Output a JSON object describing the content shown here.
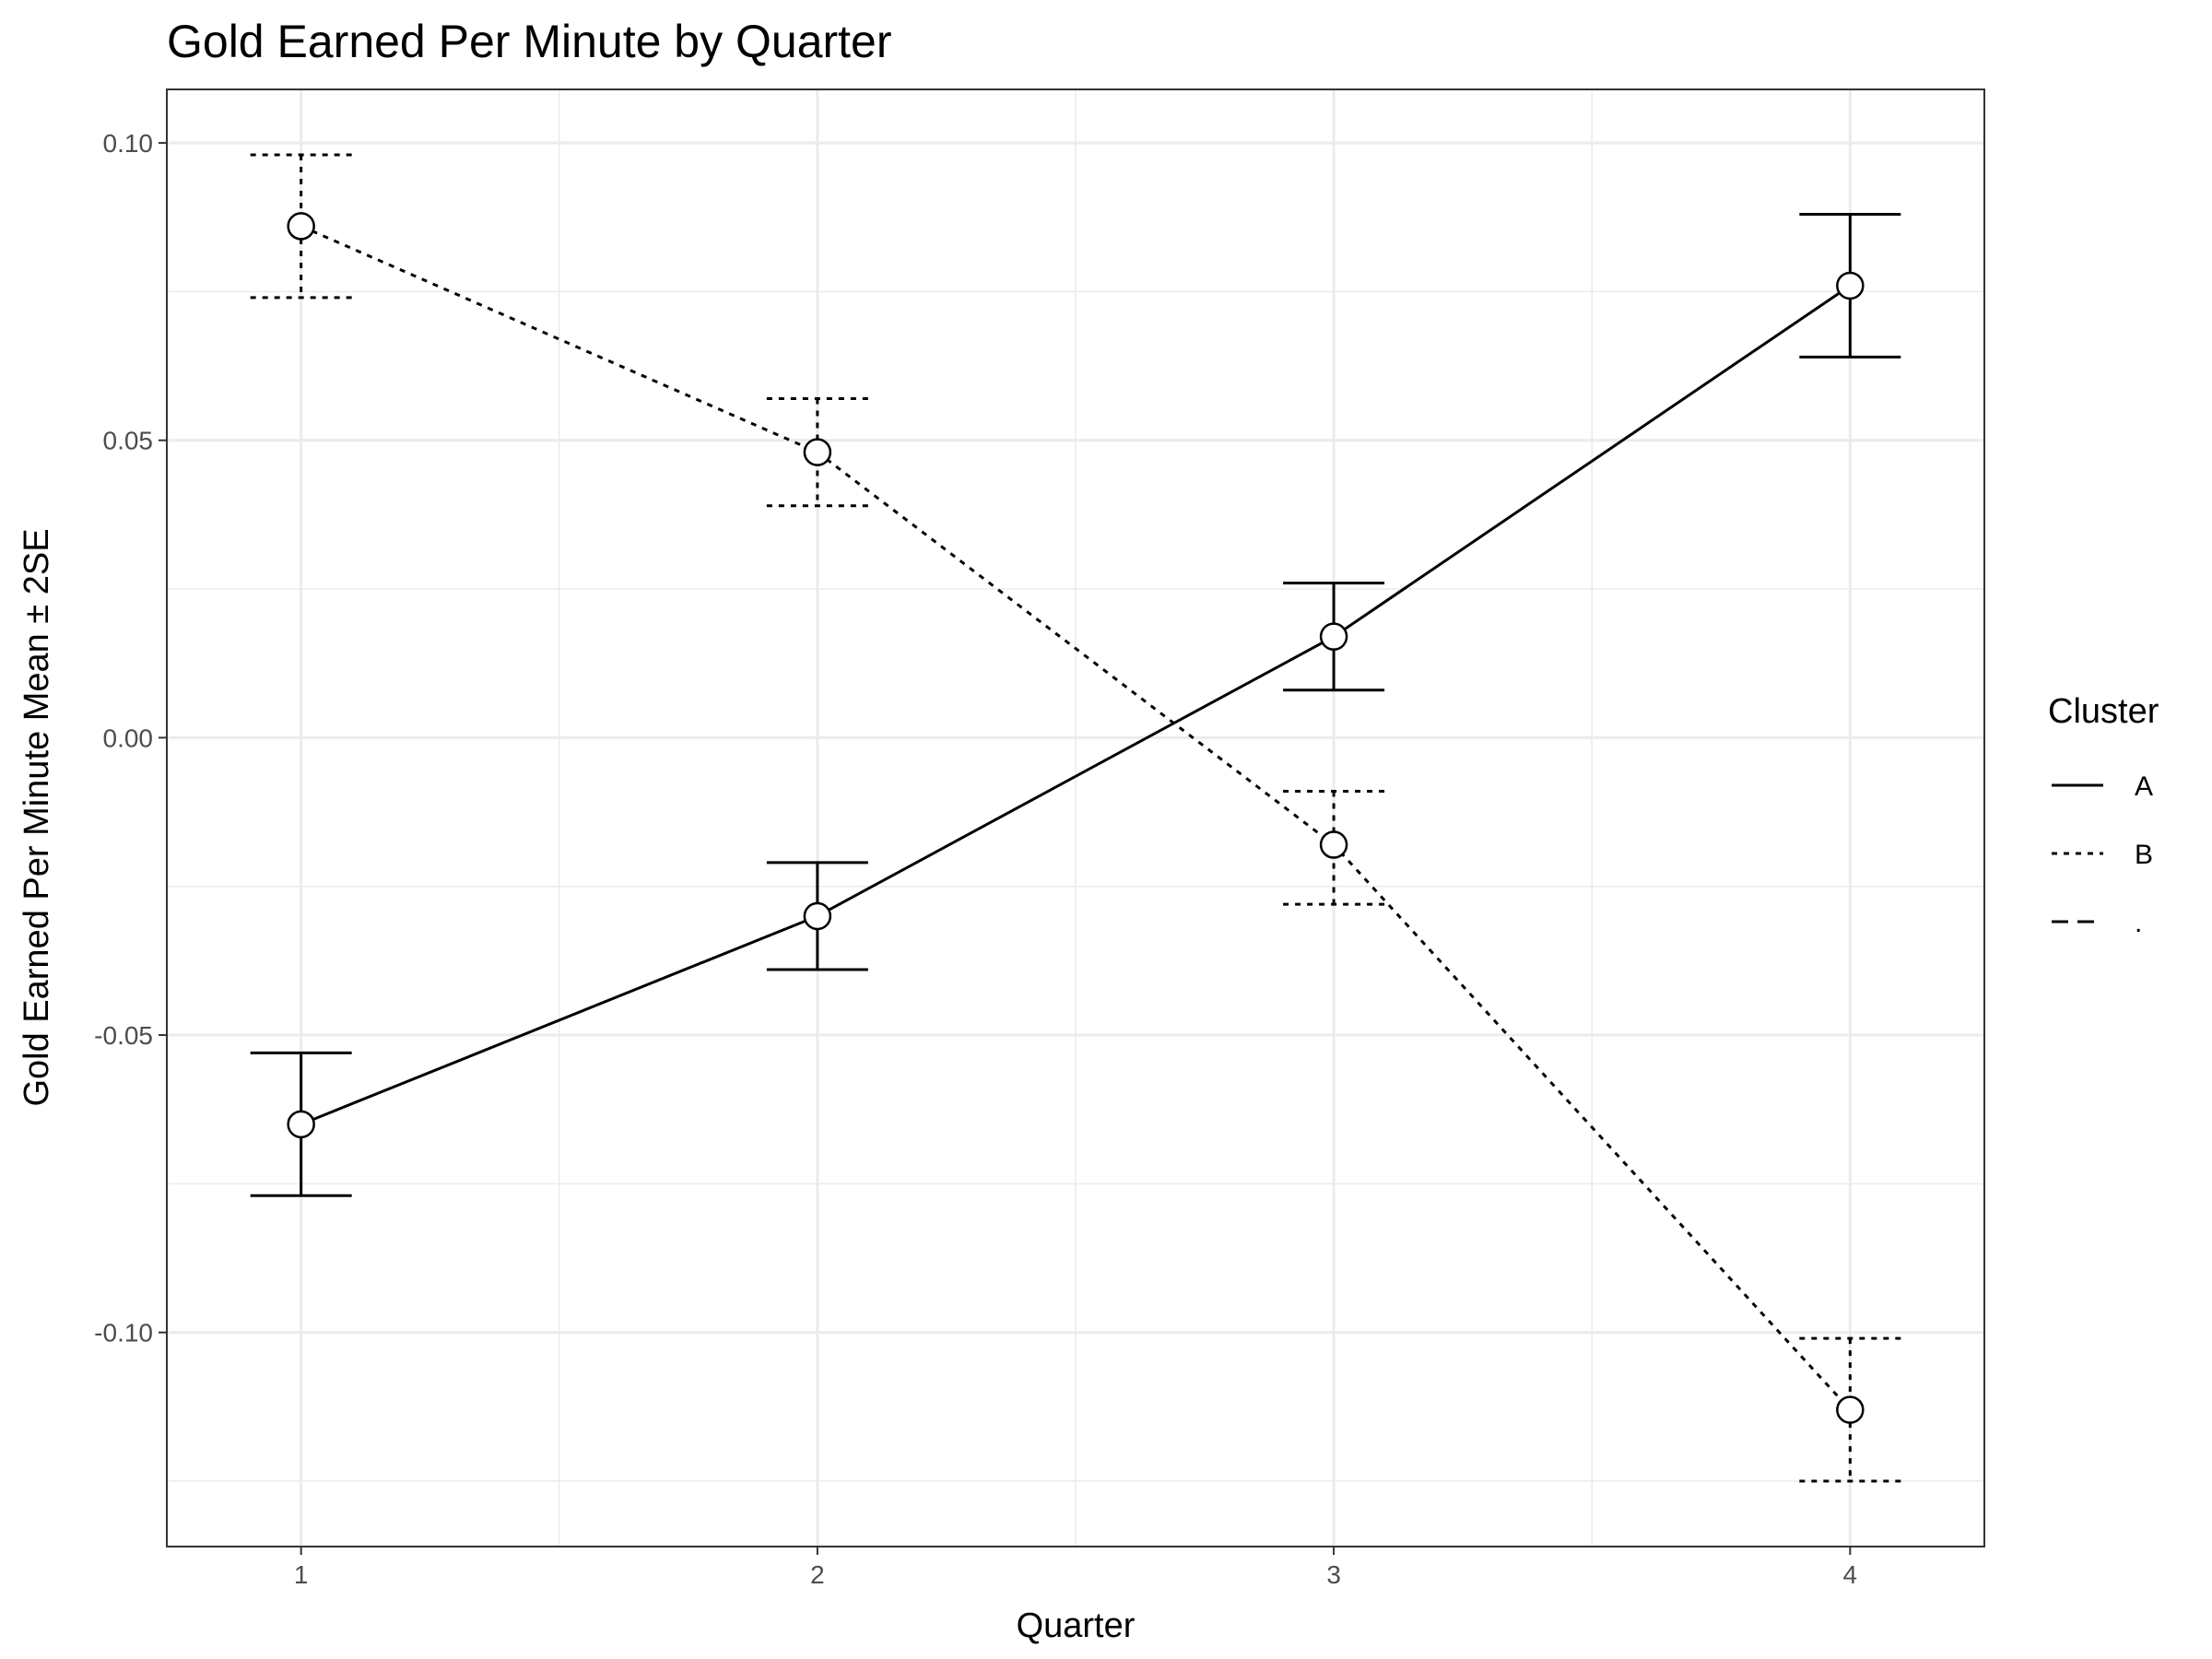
{
  "chart_data": {
    "type": "line",
    "title": "Gold Earned Per Minute by Quarter",
    "xlabel": "Quarter",
    "ylabel": "Gold Earned Per Minute Mean ± 2SE",
    "x": [
      1,
      2,
      3,
      4
    ],
    "x_tick_labels": [
      "1",
      "2",
      "3",
      "4"
    ],
    "xlim": [
      0.74,
      4.26
    ],
    "ylim": [
      -0.136,
      0.109
    ],
    "y_ticks": [
      0.1,
      0.05,
      0.0,
      -0.05,
      -0.1
    ],
    "y_tick_labels": [
      "0.10",
      "0.05",
      "0.00",
      "-0.05",
      "-0.10"
    ],
    "grid": true,
    "legend_position": "right",
    "legend_title": "Cluster",
    "series": [
      {
        "name": "A",
        "linetype": "solid",
        "values": [
          -0.065,
          -0.03,
          0.017,
          0.076
        ],
        "lower": [
          -0.077,
          -0.039,
          0.008,
          0.064
        ],
        "upper": [
          -0.053,
          -0.021,
          0.026,
          0.088
        ]
      },
      {
        "name": "B",
        "linetype": "dotted",
        "values": [
          0.086,
          0.048,
          -0.018,
          -0.113
        ],
        "lower": [
          0.074,
          0.039,
          -0.028,
          -0.125
        ],
        "upper": [
          0.098,
          0.057,
          -0.009,
          -0.101
        ]
      }
    ],
    "legend_entries": [
      {
        "label": "A",
        "linetype": "solid"
      },
      {
        "label": "B",
        "linetype": "dotted"
      },
      {
        "label": ".",
        "linetype": "dashed"
      }
    ]
  },
  "colors": {
    "line": "#000000",
    "grid": "#ebebeb",
    "panel_border": "#333333",
    "tick_text": "#4d4d4d",
    "point_fill": "#ffffff"
  }
}
